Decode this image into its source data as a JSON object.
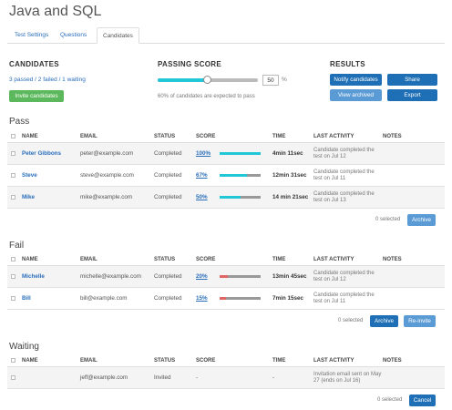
{
  "page": {
    "title": "Java and SQL"
  },
  "tabs": [
    {
      "label": "Test Settings",
      "active": false
    },
    {
      "label": "Questions",
      "active": false
    },
    {
      "label": "Candidates",
      "active": true
    }
  ],
  "candidates_panel": {
    "heading": "CANDIDATES",
    "summary": "3 passed / 2 failed / 1 waiting",
    "invite_label": "Invite candidates"
  },
  "passing_score": {
    "heading": "PASSING SCORE",
    "value": "50",
    "unit": "%",
    "note": "60% of candidates are expected to pass",
    "slider_level": 0.5
  },
  "results": {
    "heading": "RESULTS",
    "notify_label": "Notify candidates",
    "share_label": "Share",
    "view_archived_label": "View archived",
    "export_label": "Export"
  },
  "columns": [
    "NAME",
    "EMAIL",
    "STATUS",
    "SCORE",
    "TIME",
    "LAST ACTIVITY",
    "NOTES"
  ],
  "pass": {
    "title": "Pass",
    "rows": [
      {
        "name": "Peter Gibbons",
        "email": "peter@example.com",
        "status": "Completed",
        "score": "100%",
        "score_level": 1.0,
        "time": "4min 11sec",
        "activity": "Candidate completed the test on Jul 12"
      },
      {
        "name": "Steve",
        "email": "steve@example.com",
        "status": "Completed",
        "score": "67%",
        "score_level": 0.67,
        "time": "12min 31sec",
        "activity": "Candidate completed the test on Jul 11"
      },
      {
        "name": "Mike",
        "email": "mike@example.com",
        "status": "Completed",
        "score": "50%",
        "score_level": 0.5,
        "time": "14 min 21sec",
        "activity": "Candidate completed the test on Jul 13"
      }
    ],
    "selected_text": "0 selected",
    "archive_label": "Archive"
  },
  "fail": {
    "title": "Fail",
    "rows": [
      {
        "name": "Michelle",
        "email": "michelle@example.com",
        "status": "Completed",
        "score": "20%",
        "score_level": 0.2,
        "time": "13min 45sec",
        "activity": "Candidate completed the test on Jul 12"
      },
      {
        "name": "Bill",
        "email": "bill@example.com",
        "status": "Completed",
        "score": "15%",
        "score_level": 0.15,
        "time": "7min 15sec",
        "activity": "Candidate completed the test on Jul 11"
      }
    ],
    "selected_text": "0 selected",
    "archive_label": "Archive",
    "reinvite_label": "Re-invite"
  },
  "waiting": {
    "title": "Waiting",
    "rows": [
      {
        "name": "",
        "email": "jeff@example.com",
        "status": "Invited",
        "score": "-",
        "time": "-",
        "activity": "Invitation email sent on May 27 (ends on Jul 16)"
      }
    ],
    "selected_text": "0 selected",
    "cancel_label": "Cancel"
  },
  "colors": {
    "accent": "#1e6fb5",
    "pass_bar": "#20c7d6",
    "fail_bar": "#e06666",
    "invite_green": "#5cb85c"
  },
  "icons": {
    "checkbox": "checkbox-icon"
  }
}
